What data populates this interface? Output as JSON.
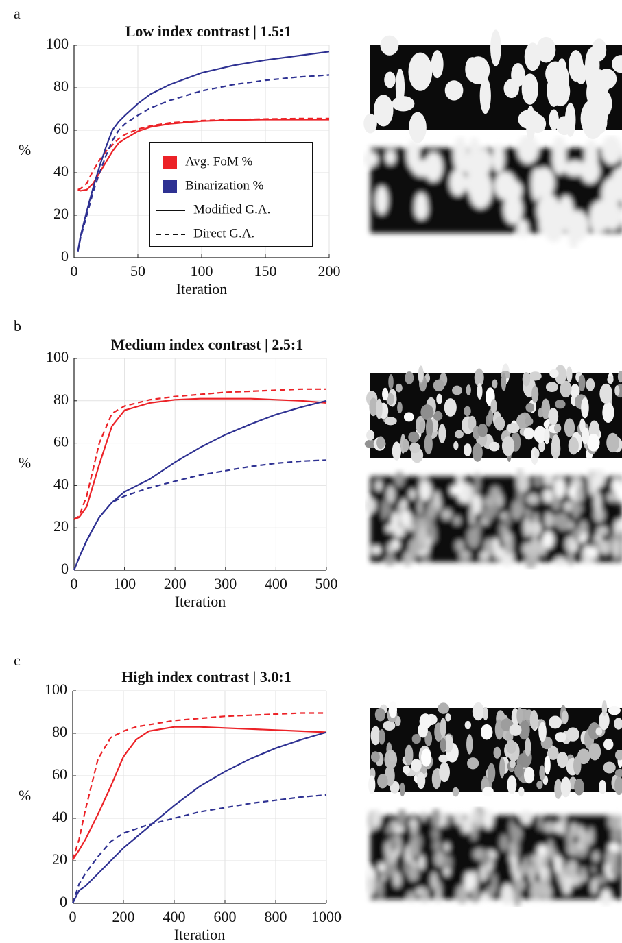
{
  "chart_data": [
    {
      "type": "line",
      "panel_label": "a",
      "title": "Low index contrast | 1.5:1",
      "xlabel": "Iteration",
      "ylabel": "%",
      "x": [
        3,
        5,
        10,
        15,
        20,
        25,
        30,
        35,
        40,
        50,
        60,
        75,
        100,
        125,
        150,
        175,
        200
      ],
      "series": [
        {
          "color": "#ec2227",
          "dash": false,
          "values": [
            32,
            31.5,
            32,
            35,
            40,
            45,
            50,
            54,
            56,
            59.5,
            61.5,
            63,
            64.3,
            64.8,
            65,
            65,
            65
          ]
        },
        {
          "color": "#ec2227",
          "dash": true,
          "values": [
            32,
            32.5,
            35,
            41,
            46,
            50,
            53,
            56,
            58,
            60.5,
            62,
            63.5,
            64.5,
            65,
            65.3,
            65.5,
            65.5
          ]
        },
        {
          "color": "#2e3192",
          "dash": false,
          "values": [
            3,
            10,
            22,
            33,
            43,
            52,
            60,
            64,
            67,
            72.5,
            77,
            81.5,
            87,
            90.5,
            93,
            95,
            97
          ]
        },
        {
          "color": "#2e3192",
          "dash": true,
          "values": [
            3,
            9,
            20,
            31,
            40,
            48,
            55,
            60,
            63,
            67,
            70.5,
            74,
            78.5,
            81.5,
            83.5,
            85,
            86
          ]
        }
      ],
      "legend": [
        {
          "label": "Avg. FoM %",
          "color": "#ec2227"
        },
        {
          "label": "Binarization %",
          "color": "#2e3192"
        },
        {
          "label": "Modified G.A.",
          "dash": false
        },
        {
          "label": "Direct G.A.",
          "dash": true
        }
      ],
      "xlim": [
        0,
        200
      ],
      "xticks": [
        0,
        50,
        100,
        150,
        200
      ],
      "ylim": [
        0,
        100
      ],
      "yticks": [
        0,
        20,
        40,
        60,
        80,
        100
      ],
      "grid": true
    },
    {
      "type": "line",
      "panel_label": "b",
      "title": "Medium index contrast | 2.5:1",
      "xlabel": "Iteration",
      "ylabel": "%",
      "x": [
        0,
        10,
        25,
        50,
        75,
        100,
        150,
        200,
        250,
        300,
        350,
        400,
        450,
        500
      ],
      "series": [
        {
          "color": "#ec2227",
          "dash": false,
          "values": [
            24,
            25,
            30,
            50,
            68,
            75.5,
            79,
            80.5,
            81,
            81,
            81,
            80.5,
            80,
            79
          ]
        },
        {
          "color": "#ec2227",
          "dash": true,
          "values": [
            24,
            25.5,
            35,
            60,
            74,
            77.5,
            80.5,
            82,
            83,
            84,
            84.5,
            85,
            85.5,
            85.5
          ]
        },
        {
          "color": "#2e3192",
          "dash": false,
          "values": [
            0,
            6,
            14,
            25,
            32,
            37,
            43,
            51,
            58,
            64,
            69,
            73.5,
            77,
            80
          ]
        },
        {
          "color": "#2e3192",
          "dash": true,
          "values": [
            0,
            6,
            14,
            25,
            32,
            35,
            39,
            42,
            45,
            47,
            49,
            50.5,
            51.5,
            52
          ]
        }
      ],
      "xlim": [
        0,
        500
      ],
      "xticks": [
        0,
        100,
        200,
        300,
        400,
        500
      ],
      "ylim": [
        0,
        100
      ],
      "yticks": [
        0,
        20,
        40,
        60,
        80,
        100
      ],
      "grid": true
    },
    {
      "type": "line",
      "panel_label": "c",
      "title": "High index contrast | 3.0:1",
      "xlabel": "Iteration",
      "ylabel": "%",
      "x": [
        0,
        25,
        50,
        100,
        150,
        200,
        250,
        300,
        400,
        500,
        600,
        700,
        800,
        900,
        1000
      ],
      "series": [
        {
          "color": "#ec2227",
          "dash": false,
          "values": [
            20.5,
            25,
            30,
            42,
            55,
            69,
            77,
            81,
            83,
            83,
            82.5,
            82,
            81.5,
            81,
            80.5
          ]
        },
        {
          "color": "#ec2227",
          "dash": true,
          "values": [
            20.5,
            30,
            44,
            68,
            78,
            81,
            83,
            84,
            86,
            87,
            88,
            88.5,
            89,
            89.5,
            89.5
          ]
        },
        {
          "color": "#2e3192",
          "dash": false,
          "values": [
            0,
            6,
            8,
            14,
            20,
            26,
            31,
            36,
            46,
            55,
            62,
            68,
            73,
            77,
            80.5
          ]
        },
        {
          "color": "#2e3192",
          "dash": true,
          "values": [
            0,
            9,
            14,
            22,
            29,
            33,
            35,
            37,
            40,
            43,
            45,
            47,
            48.5,
            50,
            51
          ]
        }
      ],
      "xlim": [
        0,
        1000
      ],
      "xticks": [
        0,
        200,
        400,
        600,
        800,
        1000
      ],
      "ylim": [
        0,
        100
      ],
      "yticks": [
        0,
        20,
        40,
        60,
        80,
        100
      ],
      "grid": true
    }
  ]
}
